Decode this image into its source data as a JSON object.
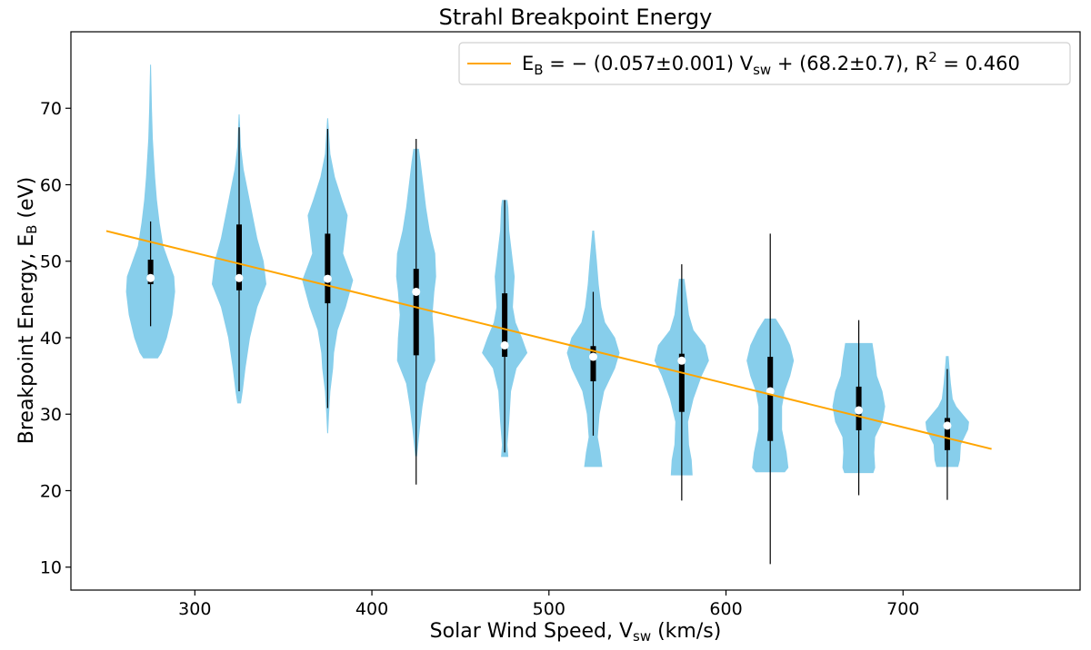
{
  "chart_data": {
    "type": "violin",
    "title": "Strahl Breakpoint Energy",
    "xlabel": {
      "main": "Solar Wind Speed, V",
      "sub": "sw",
      "tail": " (km/s)"
    },
    "ylabel": {
      "main": "Breakpoint Energy, E",
      "sub": "B",
      "tail": " (eV)"
    },
    "xlim": [
      230,
      800
    ],
    "ylim": [
      7,
      80
    ],
    "xticks": [
      300,
      400,
      500,
      600,
      700
    ],
    "yticks": [
      10,
      20,
      30,
      40,
      50,
      60,
      70
    ],
    "grid": false,
    "legend_position": "top-right",
    "colors": {
      "violin": "#87ceeb",
      "fit": "#ffa500",
      "box": "#000000",
      "median": "#ffffff"
    },
    "fit": {
      "x": [
        250,
        750
      ],
      "y": [
        53.95,
        25.45
      ],
      "legend": {
        "parts": [
          {
            "text": "E",
            "style": "normal"
          },
          {
            "text": "B",
            "style": "sub"
          },
          {
            "text": " = − (0.057±0.001) V",
            "style": "normal"
          },
          {
            "text": "sw",
            "style": "sub"
          },
          {
            "text": " + (68.2±0.7), R",
            "style": "normal"
          },
          {
            "text": "2",
            "style": "sup"
          },
          {
            "text": " = 0.460",
            "style": "normal"
          }
        ]
      }
    },
    "violins": [
      {
        "x": 275,
        "min": 41.5,
        "q1": 47.0,
        "median": 47.8,
        "q3": 50.2,
        "max": 55.2,
        "profile": [
          [
            37.3,
            8
          ],
          [
            38,
            12
          ],
          [
            40,
            18
          ],
          [
            43,
            24
          ],
          [
            46,
            27
          ],
          [
            48,
            26
          ],
          [
            50,
            20
          ],
          [
            52,
            14
          ],
          [
            55,
            10
          ],
          [
            58,
            7
          ],
          [
            61,
            5
          ],
          [
            63,
            4
          ],
          [
            66,
            2.5
          ],
          [
            70,
            1.5
          ],
          [
            75.7,
            0.5
          ]
        ]
      },
      {
        "x": 325,
        "min": 33.0,
        "q1": 46.2,
        "median": 47.8,
        "q3": 54.8,
        "max": 67.5,
        "profile": [
          [
            31.4,
            2
          ],
          [
            33,
            4
          ],
          [
            36,
            7
          ],
          [
            40,
            12
          ],
          [
            44,
            20
          ],
          [
            47,
            30
          ],
          [
            50,
            27
          ],
          [
            53,
            20
          ],
          [
            56,
            15
          ],
          [
            59,
            10
          ],
          [
            62,
            5
          ],
          [
            65,
            2
          ],
          [
            69.2,
            0.5
          ]
        ]
      },
      {
        "x": 375,
        "min": 30.8,
        "q1": 44.5,
        "median": 47.7,
        "q3": 53.6,
        "max": 67.3,
        "profile": [
          [
            27.5,
            0.5
          ],
          [
            30,
            1.5
          ],
          [
            33,
            3
          ],
          [
            36,
            6
          ],
          [
            38,
            7
          ],
          [
            41,
            11
          ],
          [
            44,
            20
          ],
          [
            47.5,
            28
          ],
          [
            51,
            17
          ],
          [
            54,
            20
          ],
          [
            56,
            22
          ],
          [
            58,
            16
          ],
          [
            61,
            8
          ],
          [
            64,
            3
          ],
          [
            68.7,
            0.5
          ]
        ]
      },
      {
        "x": 425,
        "min": 20.8,
        "q1": 37.7,
        "median": 46.0,
        "q3": 49.0,
        "max": 66.0,
        "profile": [
          [
            24.5,
            1
          ],
          [
            28,
            4
          ],
          [
            31,
            7
          ],
          [
            34,
            11
          ],
          [
            37,
            21
          ],
          [
            40,
            20
          ],
          [
            43,
            18
          ],
          [
            46,
            20
          ],
          [
            48,
            22
          ],
          [
            51,
            21
          ],
          [
            54,
            15
          ],
          [
            57,
            11
          ],
          [
            60,
            8
          ],
          [
            63,
            5
          ],
          [
            64.7,
            3
          ]
        ]
      },
      {
        "x": 475,
        "min": 25.0,
        "q1": 37.5,
        "median": 39.0,
        "q3": 45.8,
        "max": 58.0,
        "profile": [
          [
            24.4,
            4
          ],
          [
            26,
            3
          ],
          [
            29,
            5
          ],
          [
            33,
            7
          ],
          [
            36,
            13
          ],
          [
            38,
            25
          ],
          [
            40,
            19
          ],
          [
            42,
            12
          ],
          [
            44,
            9
          ],
          [
            46,
            10
          ],
          [
            48,
            11
          ],
          [
            51,
            8
          ],
          [
            54,
            5
          ],
          [
            57,
            4
          ],
          [
            58,
            3
          ]
        ]
      },
      {
        "x": 525,
        "min": 27.2,
        "q1": 34.3,
        "median": 37.5,
        "q3": 38.9,
        "max": 46.0,
        "profile": [
          [
            23.1,
            10
          ],
          [
            25,
            8
          ],
          [
            27,
            5
          ],
          [
            30,
            7
          ],
          [
            33,
            12
          ],
          [
            36,
            24
          ],
          [
            38,
            29
          ],
          [
            40,
            24
          ],
          [
            42,
            13
          ],
          [
            44,
            9
          ],
          [
            47,
            6
          ],
          [
            50,
            4
          ],
          [
            54,
            1
          ]
        ]
      },
      {
        "x": 575,
        "min": 18.7,
        "q1": 30.3,
        "median": 37.0,
        "q3": 37.9,
        "max": 49.6,
        "profile": [
          [
            22,
            12
          ],
          [
            24,
            11
          ],
          [
            26,
            8
          ],
          [
            29,
            7
          ],
          [
            32,
            13
          ],
          [
            35,
            22
          ],
          [
            37,
            30
          ],
          [
            39,
            26
          ],
          [
            41,
            13
          ],
          [
            43,
            8
          ],
          [
            45,
            6
          ],
          [
            47.7,
            3
          ]
        ]
      },
      {
        "x": 625,
        "min": 10.4,
        "q1": 26.5,
        "median": 33.0,
        "q3": 37.5,
        "max": 53.6,
        "profile": [
          [
            22.4,
            16
          ],
          [
            23,
            20
          ],
          [
            25,
            18
          ],
          [
            28,
            13
          ],
          [
            31,
            13
          ],
          [
            33,
            16
          ],
          [
            35,
            22
          ],
          [
            37,
            26
          ],
          [
            39,
            22
          ],
          [
            41,
            14
          ],
          [
            42.5,
            6
          ]
        ]
      },
      {
        "x": 675,
        "min": 19.4,
        "q1": 27.9,
        "median": 30.5,
        "q3": 33.6,
        "max": 42.3,
        "profile": [
          [
            22.3,
            16
          ],
          [
            23,
            18
          ],
          [
            25,
            17
          ],
          [
            27,
            18
          ],
          [
            29,
            26
          ],
          [
            31,
            29
          ],
          [
            33,
            26
          ],
          [
            35,
            20
          ],
          [
            37,
            18
          ],
          [
            39.3,
            15
          ]
        ]
      },
      {
        "x": 725,
        "min": 18.8,
        "q1": 25.3,
        "median": 28.5,
        "q3": 29.5,
        "max": 35.9,
        "profile": [
          [
            23.1,
            12
          ],
          [
            24,
            14
          ],
          [
            26,
            15
          ],
          [
            28,
            23
          ],
          [
            29,
            24
          ],
          [
            30,
            17
          ],
          [
            31,
            10
          ],
          [
            32,
            6
          ],
          [
            34,
            4
          ],
          [
            36,
            2.5
          ],
          [
            37.6,
            1.5
          ]
        ]
      }
    ]
  }
}
